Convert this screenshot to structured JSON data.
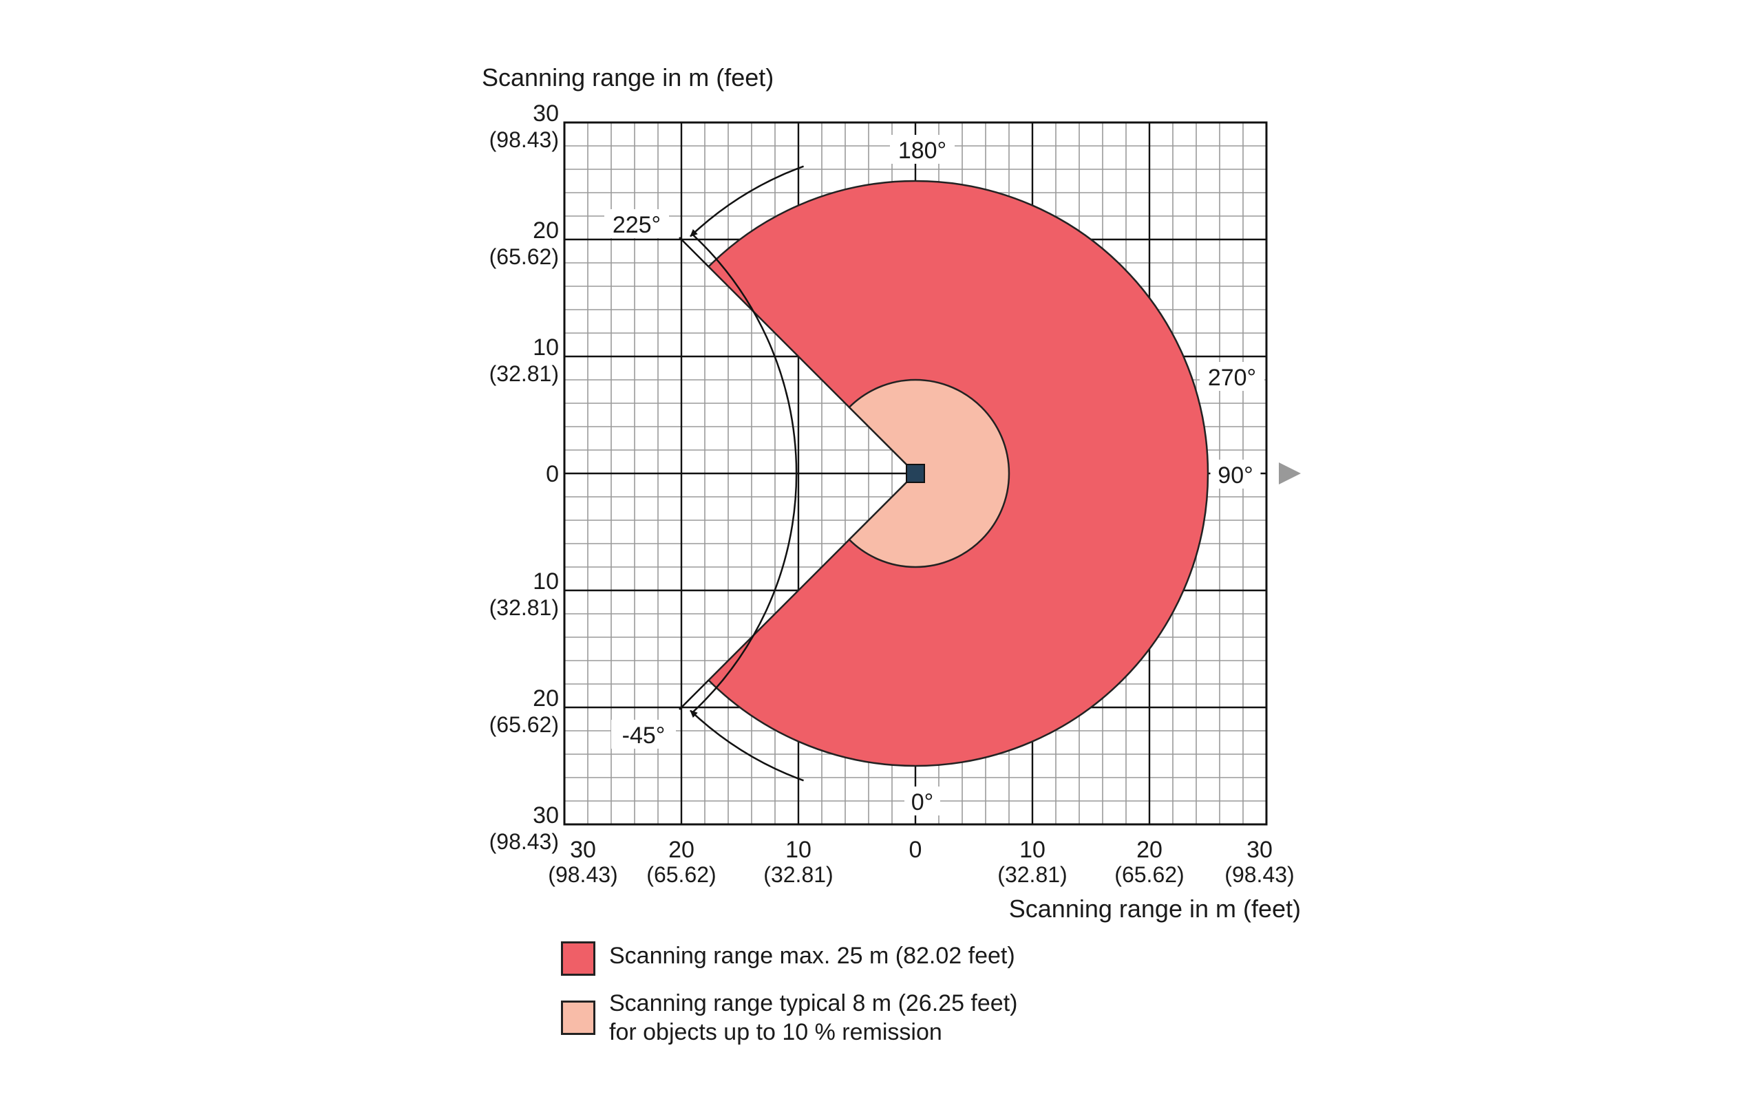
{
  "axis_titles": {
    "vertical": "Scanning range in m (feet)",
    "horizontal": "Scanning range in m (feet)"
  },
  "y_ticks": [
    {
      "value": "30",
      "sub": "(98.43)"
    },
    {
      "value": "20",
      "sub": "(65.62)"
    },
    {
      "value": "10",
      "sub": "(32.81)"
    },
    {
      "value": "0",
      "sub": ""
    },
    {
      "value": "10",
      "sub": "(32.81)"
    },
    {
      "value": "20",
      "sub": "(65.62)"
    },
    {
      "value": "30",
      "sub": "(98.43)"
    }
  ],
  "x_ticks": [
    {
      "value": "30",
      "sub": "(98.43)"
    },
    {
      "value": "20",
      "sub": "(65.62)"
    },
    {
      "value": "10",
      "sub": "(32.81)"
    },
    {
      "value": "0",
      "sub": ""
    },
    {
      "value": "10",
      "sub": "(32.81)"
    },
    {
      "value": "20",
      "sub": "(65.62)"
    },
    {
      "value": "30",
      "sub": "(98.43)"
    }
  ],
  "angle_labels": [
    {
      "text": "180°",
      "angle": 180
    },
    {
      "text": "225°",
      "angle": 225
    },
    {
      "text": "270°",
      "angle": 270
    },
    {
      "text": "90°",
      "angle": 90
    },
    {
      "text": "-45°",
      "angle": -45
    },
    {
      "text": "0°",
      "angle": 0
    }
  ],
  "ranges": {
    "max_m": 25,
    "typical_m": 8,
    "field_start_deg": -45,
    "field_end_deg": 225,
    "axis_extent_m": 30
  },
  "colors": {
    "max_range": "#ef5f67",
    "typical_range": "#f8bca8",
    "grid_minor": "#9a9a9a",
    "grid_major": "#111111",
    "arrow": "#999999"
  },
  "legend": [
    {
      "lines": [
        "Scanning range max. 25 m (82.02 feet)"
      ],
      "color": "#ef5f67"
    },
    {
      "lines": [
        "Scanning range typical 8 m (26.25 feet)",
        "for objects up to 10 % remission"
      ],
      "color": "#f8bca8"
    }
  ]
}
